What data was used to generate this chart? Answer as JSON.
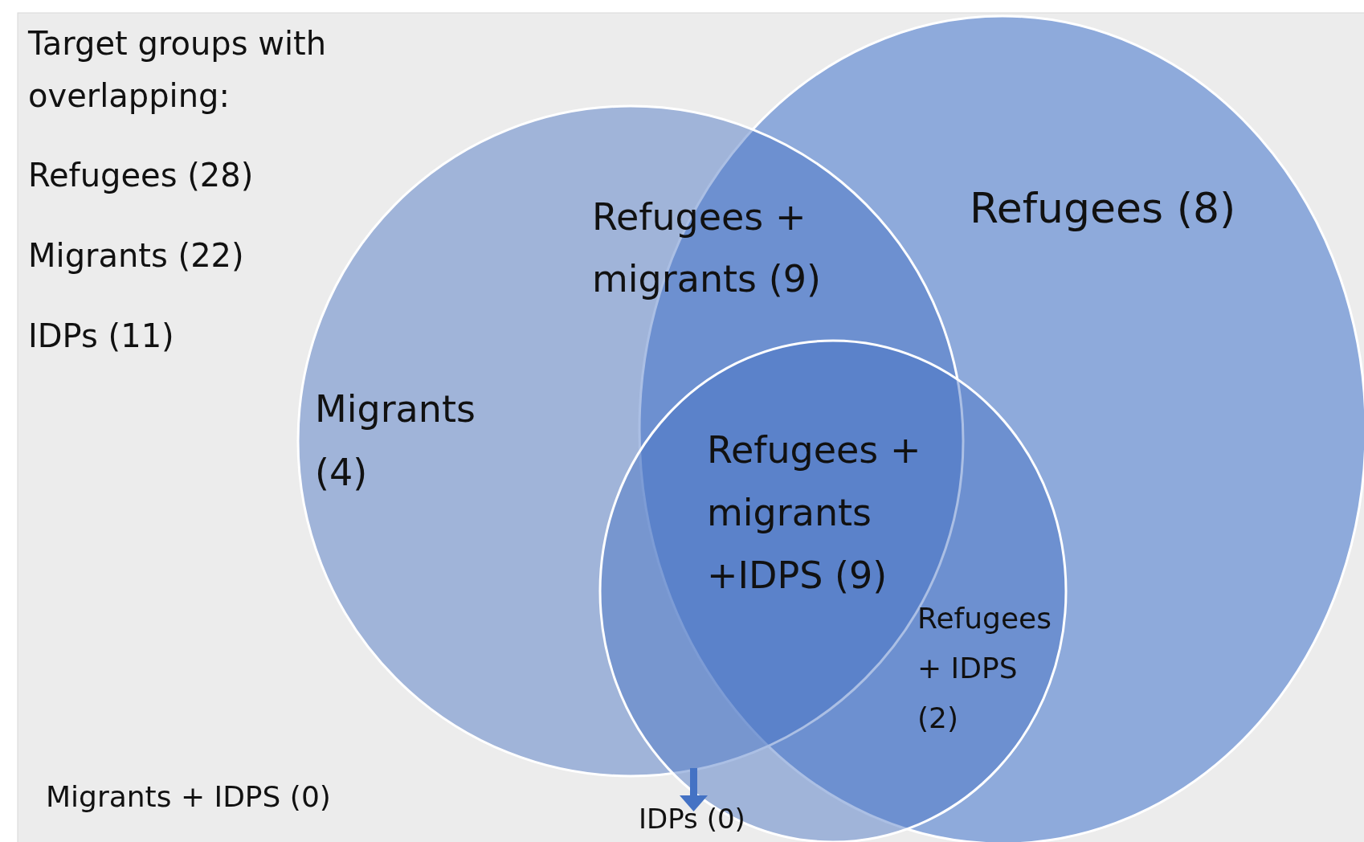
{
  "chart_data": {
    "type": "other",
    "title": "Target groups with\noverlapping:",
    "annotations": [
      "Refugees (28)",
      "Migrants (22)",
      "IDPs (11)"
    ],
    "categories": [
      "Refugees (8)",
      "Refugees +\nmigrants (9)",
      "Migrants\n(4)",
      "Refugees +\nmigrants\n+IDPS (9)",
      "Refugees\n+ IDPS\n(2)",
      "Migrants + IDPS (0)",
      "IDPs (0)"
    ],
    "values": [
      8,
      9,
      4,
      9,
      2,
      0,
      0
    ],
    "data_labels": true
  }
}
